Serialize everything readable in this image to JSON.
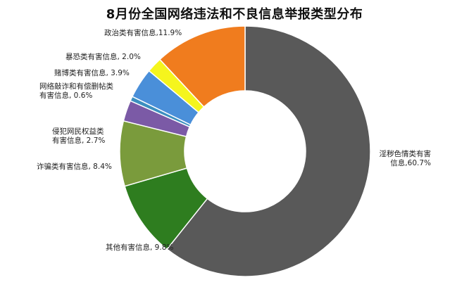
{
  "chart_data": {
    "type": "pie",
    "title": "8月份全国网络违法和不良信息举报类型分布",
    "slices": [
      {
        "name": "淫秽色情类有害信息",
        "label_lines": [
          "淫秽色情类有害",
          "信息,60.7%"
        ],
        "value": 60.7,
        "color": "#595959"
      },
      {
        "name": "其他有害信息",
        "label_lines": [
          "其他有害信息, 9.8%"
        ],
        "value": 9.8,
        "color": "#2e7d1f"
      },
      {
        "name": "诈骗类有害信息",
        "label_lines": [
          "诈骗类有害信息, 8.4%"
        ],
        "value": 8.4,
        "color": "#7a9b3c"
      },
      {
        "name": "侵犯网民权益类有害信息",
        "label_lines": [
          "侵犯网民权益类",
          "有害信息, 2.7%"
        ],
        "value": 2.7,
        "color": "#7b5aa6"
      },
      {
        "name": "网络敲诈和有偿删帖类有害信息",
        "label_lines": [
          "网络敲诈和有偿删帖类",
          "有害信息, 0.6%"
        ],
        "value": 0.6,
        "color": "#3c8fbf"
      },
      {
        "name": "赌博类有害信息",
        "label_lines": [
          "赌博类有害信息, 3.9%"
        ],
        "value": 3.9,
        "color": "#4a8fd9"
      },
      {
        "name": "暴恐类有害信息",
        "label_lines": [
          "暴恐类有害信息, 2.0%"
        ],
        "value": 2.0,
        "color": "#f5f51d"
      },
      {
        "name": "政治类有害信息",
        "label_lines": [
          "政治类有害信息,11.9%"
        ],
        "value": 11.9,
        "color": "#f07c1e"
      }
    ],
    "legend": "none",
    "start": "12 o'clock",
    "direction": "clockwise"
  }
}
